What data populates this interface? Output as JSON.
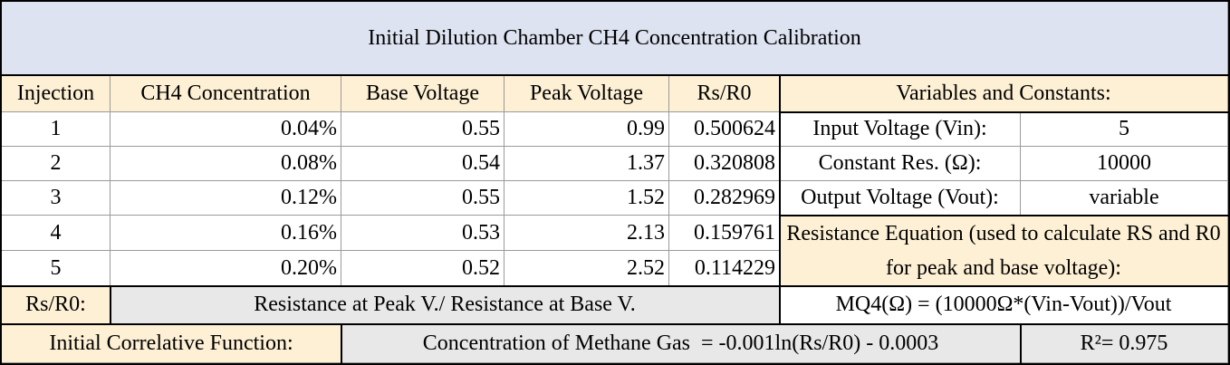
{
  "title": "Initial Dilution Chamber CH4 Concentration Calibration",
  "headers": {
    "injection": "Injection",
    "concentration": "CH4 Concentration",
    "base_voltage": "Base Voltage",
    "peak_voltage": "Peak Voltage",
    "ratio": "Rs/R0"
  },
  "rows": [
    {
      "injection": "1",
      "concentration": "0.04%",
      "base": "0.55",
      "peak": "0.99",
      "ratio": "0.500624"
    },
    {
      "injection": "2",
      "concentration": "0.08%",
      "base": "0.54",
      "peak": "1.37",
      "ratio": "0.320808"
    },
    {
      "injection": "3",
      "concentration": "0.12%",
      "base": "0.55",
      "peak": "1.52",
      "ratio": "0.282969"
    },
    {
      "injection": "4",
      "concentration": "0.16%",
      "base": "0.53",
      "peak": "2.13",
      "ratio": "0.159761"
    },
    {
      "injection": "5",
      "concentration": "0.20%",
      "base": "0.52",
      "peak": "2.52",
      "ratio": "0.114229"
    }
  ],
  "variables": {
    "header": "Variables and Constants:",
    "items": [
      {
        "label": "Input Voltage (Vin):",
        "value": "5"
      },
      {
        "label": "Constant Res. (Ω):",
        "value": "10000"
      },
      {
        "label": "Output Voltage (Vout):",
        "value": "variable"
      }
    ],
    "equation_header": "Resistance Equation (used to calculate RS and R0 for peak and base voltage):",
    "equation": "MQ4(Ω) = (10000Ω*(Vin-Vout))/Vout"
  },
  "ratio_def": {
    "label": "Rs/R0:",
    "text": "Resistance at Peak V./ Resistance at Base V."
  },
  "correlation": {
    "label": "Initial Correlative Function:",
    "function": "Concentration of Methane Gas  = -0.001ln(Rs/R0) - 0.0003",
    "r_squared": "R²= 0.975"
  }
}
